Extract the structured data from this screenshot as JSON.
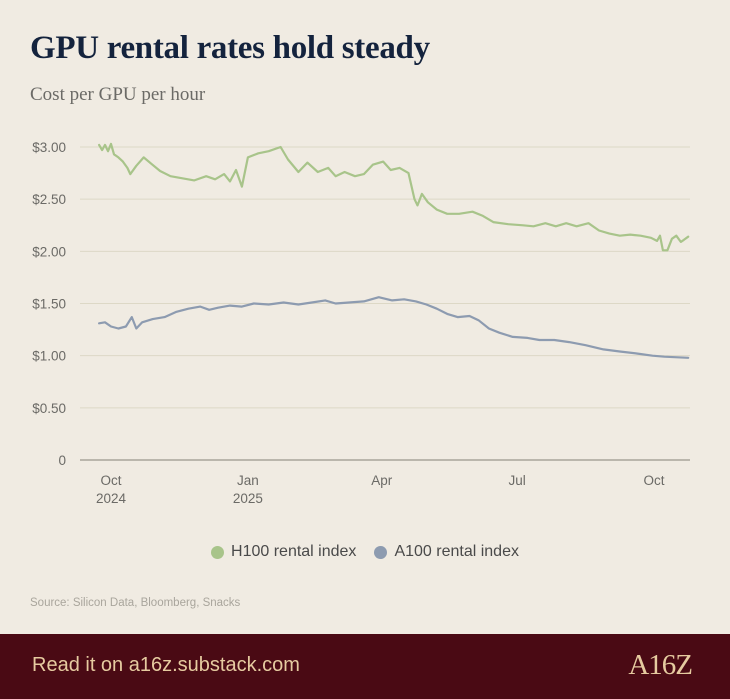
{
  "header": {
    "title": "GPU rental rates hold steady",
    "subtitle": "Cost per GPU per hour"
  },
  "chart_data": {
    "type": "line",
    "title": "GPU rental rates hold steady",
    "subtitle": "Cost per GPU per hour",
    "xlabel": "",
    "ylabel": "",
    "x_range": [
      "2024-09-23",
      "2025-10-24"
    ],
    "ylim": [
      0,
      3
    ],
    "y_ticks": [
      {
        "value": 0,
        "label": "0"
      },
      {
        "value": 0.5,
        "label": "$0.50"
      },
      {
        "value": 1.0,
        "label": "$1.00"
      },
      {
        "value": 1.5,
        "label": "$1.50"
      },
      {
        "value": 2.0,
        "label": "$2.00"
      },
      {
        "value": 2.5,
        "label": "$2.50"
      },
      {
        "value": 3.0,
        "label": "$3.00"
      }
    ],
    "x_ticks": [
      {
        "date": "2024-10-01",
        "label": "Oct",
        "sublabel": "2024"
      },
      {
        "date": "2025-01-01",
        "label": "Jan",
        "sublabel": "2025"
      },
      {
        "date": "2025-04-01",
        "label": "Apr",
        "sublabel": ""
      },
      {
        "date": "2025-07-01",
        "label": "Jul",
        "sublabel": ""
      },
      {
        "date": "2025-10-01",
        "label": "Oct",
        "sublabel": ""
      }
    ],
    "grid": true,
    "legend_position": "bottom",
    "series": [
      {
        "name": "H100 rental index",
        "color": "#a8c48a",
        "points": [
          [
            "2024-09-23",
            3.02
          ],
          [
            "2024-09-25",
            2.97
          ],
          [
            "2024-09-27",
            3.02
          ],
          [
            "2024-09-29",
            2.96
          ],
          [
            "2024-10-01",
            3.03
          ],
          [
            "2024-10-03",
            2.93
          ],
          [
            "2024-10-06",
            2.9
          ],
          [
            "2024-10-09",
            2.86
          ],
          [
            "2024-10-12",
            2.8
          ],
          [
            "2024-10-14",
            2.74
          ],
          [
            "2024-10-18",
            2.82
          ],
          [
            "2024-10-23",
            2.9
          ],
          [
            "2024-10-28",
            2.84
          ],
          [
            "2024-11-03",
            2.77
          ],
          [
            "2024-11-10",
            2.72
          ],
          [
            "2024-11-18",
            2.7
          ],
          [
            "2024-11-26",
            2.68
          ],
          [
            "2024-12-04",
            2.72
          ],
          [
            "2024-12-10",
            2.69
          ],
          [
            "2024-12-16",
            2.74
          ],
          [
            "2024-12-20",
            2.67
          ],
          [
            "2024-12-24",
            2.78
          ],
          [
            "2024-12-28",
            2.62
          ],
          [
            "2025-01-01",
            2.9
          ],
          [
            "2025-01-08",
            2.94
          ],
          [
            "2025-01-15",
            2.96
          ],
          [
            "2025-01-23",
            3.0
          ],
          [
            "2025-01-28",
            2.88
          ],
          [
            "2025-02-04",
            2.76
          ],
          [
            "2025-02-10",
            2.85
          ],
          [
            "2025-02-17",
            2.76
          ],
          [
            "2025-02-24",
            2.8
          ],
          [
            "2025-03-01",
            2.72
          ],
          [
            "2025-03-07",
            2.76
          ],
          [
            "2025-03-14",
            2.72
          ],
          [
            "2025-03-20",
            2.74
          ],
          [
            "2025-03-26",
            2.83
          ],
          [
            "2025-04-02",
            2.86
          ],
          [
            "2025-04-07",
            2.78
          ],
          [
            "2025-04-13",
            2.8
          ],
          [
            "2025-04-19",
            2.75
          ],
          [
            "2025-04-23",
            2.5
          ],
          [
            "2025-04-25",
            2.44
          ],
          [
            "2025-04-28",
            2.55
          ],
          [
            "2025-05-02",
            2.47
          ],
          [
            "2025-05-08",
            2.4
          ],
          [
            "2025-05-15",
            2.36
          ],
          [
            "2025-05-23",
            2.36
          ],
          [
            "2025-06-01",
            2.38
          ],
          [
            "2025-06-08",
            2.34
          ],
          [
            "2025-06-15",
            2.28
          ],
          [
            "2025-06-25",
            2.26
          ],
          [
            "2025-07-05",
            2.25
          ],
          [
            "2025-07-12",
            2.24
          ],
          [
            "2025-07-20",
            2.27
          ],
          [
            "2025-07-27",
            2.24
          ],
          [
            "2025-08-03",
            2.27
          ],
          [
            "2025-08-10",
            2.24
          ],
          [
            "2025-08-18",
            2.27
          ],
          [
            "2025-08-25",
            2.2
          ],
          [
            "2025-09-01",
            2.17
          ],
          [
            "2025-09-08",
            2.15
          ],
          [
            "2025-09-15",
            2.16
          ],
          [
            "2025-09-22",
            2.15
          ],
          [
            "2025-09-29",
            2.13
          ],
          [
            "2025-10-03",
            2.1
          ],
          [
            "2025-10-05",
            2.15
          ],
          [
            "2025-10-07",
            2.01
          ],
          [
            "2025-10-10",
            2.01
          ],
          [
            "2025-10-13",
            2.12
          ],
          [
            "2025-10-16",
            2.15
          ],
          [
            "2025-10-19",
            2.09
          ],
          [
            "2025-10-21",
            2.11
          ],
          [
            "2025-10-24",
            2.14
          ]
        ]
      },
      {
        "name": "A100 rental index",
        "color": "#8d9bb0",
        "points": [
          [
            "2024-09-23",
            1.31
          ],
          [
            "2024-09-27",
            1.32
          ],
          [
            "2024-10-01",
            1.28
          ],
          [
            "2024-10-06",
            1.26
          ],
          [
            "2024-10-11",
            1.28
          ],
          [
            "2024-10-15",
            1.37
          ],
          [
            "2024-10-18",
            1.26
          ],
          [
            "2024-10-22",
            1.32
          ],
          [
            "2024-10-29",
            1.35
          ],
          [
            "2024-11-06",
            1.37
          ],
          [
            "2024-11-14",
            1.42
          ],
          [
            "2024-11-22",
            1.45
          ],
          [
            "2024-11-30",
            1.47
          ],
          [
            "2024-12-06",
            1.44
          ],
          [
            "2024-12-12",
            1.46
          ],
          [
            "2024-12-20",
            1.48
          ],
          [
            "2024-12-28",
            1.47
          ],
          [
            "2025-01-05",
            1.5
          ],
          [
            "2025-01-15",
            1.49
          ],
          [
            "2025-01-25",
            1.51
          ],
          [
            "2025-02-04",
            1.49
          ],
          [
            "2025-02-13",
            1.51
          ],
          [
            "2025-02-22",
            1.53
          ],
          [
            "2025-03-01",
            1.5
          ],
          [
            "2025-03-10",
            1.51
          ],
          [
            "2025-03-20",
            1.52
          ],
          [
            "2025-03-30",
            1.56
          ],
          [
            "2025-04-08",
            1.53
          ],
          [
            "2025-04-16",
            1.54
          ],
          [
            "2025-04-24",
            1.52
          ],
          [
            "2025-05-01",
            1.49
          ],
          [
            "2025-05-08",
            1.45
          ],
          [
            "2025-05-15",
            1.4
          ],
          [
            "2025-05-22",
            1.37
          ],
          [
            "2025-05-30",
            1.38
          ],
          [
            "2025-06-05",
            1.34
          ],
          [
            "2025-06-12",
            1.26
          ],
          [
            "2025-06-19",
            1.22
          ],
          [
            "2025-06-28",
            1.18
          ],
          [
            "2025-07-08",
            1.17
          ],
          [
            "2025-07-16",
            1.15
          ],
          [
            "2025-07-26",
            1.15
          ],
          [
            "2025-08-05",
            1.13
          ],
          [
            "2025-08-16",
            1.1
          ],
          [
            "2025-08-28",
            1.06
          ],
          [
            "2025-09-08",
            1.04
          ],
          [
            "2025-09-20",
            1.02
          ],
          [
            "2025-09-30",
            1.0
          ],
          [
            "2025-10-08",
            0.99
          ],
          [
            "2025-10-24",
            0.98
          ]
        ]
      }
    ]
  },
  "legend": {
    "h100_label": "H100 rental index",
    "a100_label": "A100 rental index"
  },
  "source": "Source: Silicon Data, Bloomberg, Snacks",
  "footer": {
    "cta": "Read it on a16z.substack.com",
    "logo": "A16Z"
  }
}
